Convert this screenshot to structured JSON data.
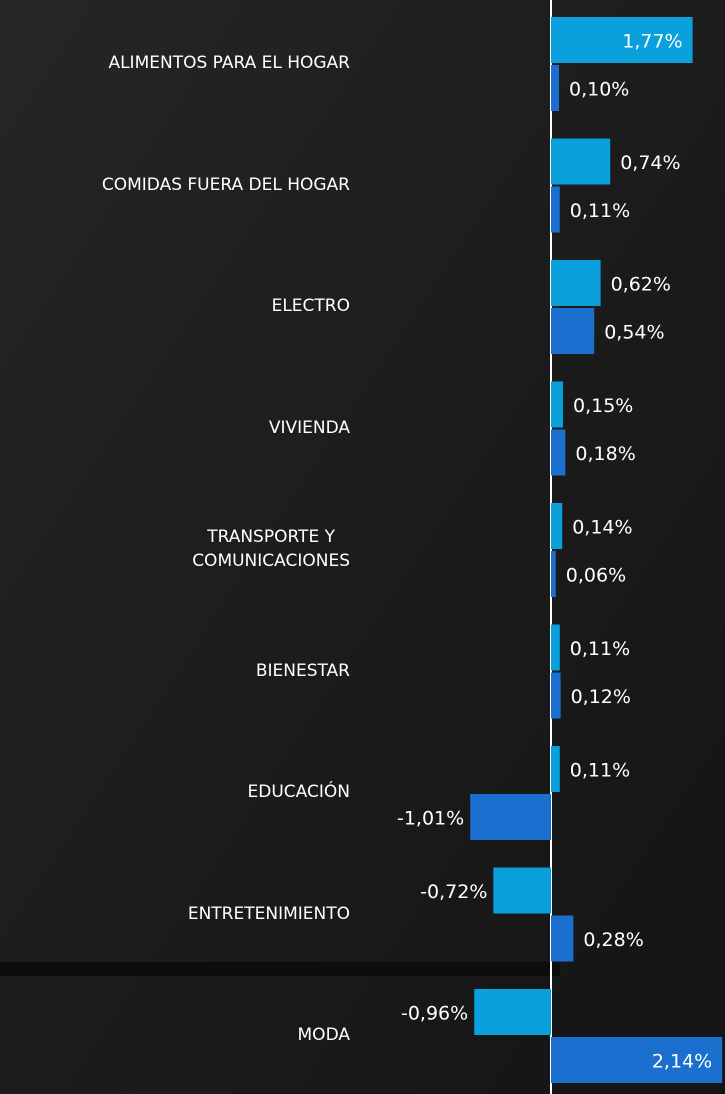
{
  "chart_data": {
    "type": "bar",
    "orientation": "horizontal",
    "categories": [
      "ALIMENTOS PARA EL HOGAR",
      "COMIDAS FUERA DEL HOGAR",
      "ELECTRO",
      "VIVIENDA",
      "TRANSPORTE Y\nCOMUNICACIONES",
      "BIENESTAR",
      "EDUCACIÓN",
      "ENTRETENIMIENTO",
      "MODA"
    ],
    "series": [
      {
        "color": "#0aa0dc",
        "values": [
          1.77,
          0.74,
          0.62,
          0.15,
          0.14,
          0.11,
          0.11,
          -0.72,
          -0.96
        ],
        "value_labels": [
          "1,77%",
          "0,74%",
          "0,62%",
          "0,15%",
          "0,14%",
          "0,11%",
          "0,11%",
          "-0,72%",
          "-0,96%"
        ]
      },
      {
        "color": "#1a6fcf",
        "values": [
          0.1,
          0.11,
          0.54,
          0.18,
          0.06,
          0.12,
          -1.01,
          0.28,
          2.14
        ],
        "value_labels": [
          "0,10%",
          "0,11%",
          "0,54%",
          "0,18%",
          "0,06%",
          "0,12%",
          "-1,01%",
          "0,28%",
          "2,14%"
        ]
      }
    ]
  }
}
